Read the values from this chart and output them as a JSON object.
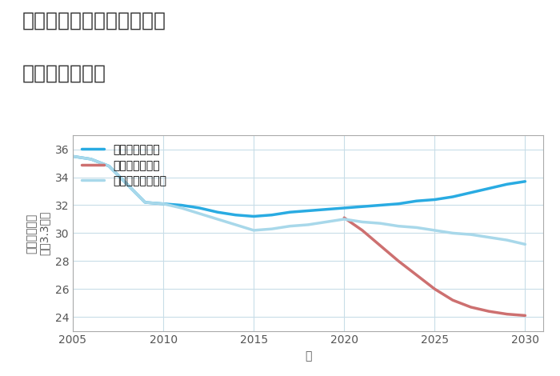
{
  "title_line1": "愛知県豊橋市東田中郷町の",
  "title_line2": "土地の価格推移",
  "xlabel": "年",
  "ylabel_top": "単価（万円）",
  "ylabel_bottom": "坪（3.3㎡）",
  "ylim": [
    23,
    37
  ],
  "xlim": [
    2005,
    2031
  ],
  "yticks": [
    24,
    26,
    28,
    30,
    32,
    34,
    36
  ],
  "xticks": [
    2005,
    2010,
    2015,
    2020,
    2025,
    2030
  ],
  "good_scenario": {
    "x": [
      2005,
      2006,
      2007,
      2008,
      2009,
      2010,
      2011,
      2012,
      2013,
      2014,
      2015,
      2016,
      2017,
      2018,
      2019,
      2020,
      2021,
      2022,
      2023,
      2024,
      2025,
      2026,
      2027,
      2028,
      2029,
      2030
    ],
    "y": [
      35.5,
      35.3,
      34.8,
      33.5,
      32.2,
      32.1,
      32.0,
      31.8,
      31.5,
      31.3,
      31.2,
      31.3,
      31.5,
      31.6,
      31.7,
      31.8,
      31.9,
      32.0,
      32.1,
      32.3,
      32.4,
      32.6,
      32.9,
      33.2,
      33.5,
      33.7
    ],
    "color": "#29ABE2",
    "label": "グッドシナリオ",
    "linewidth": 2.5
  },
  "bad_scenario": {
    "x": [
      2020,
      2021,
      2022,
      2023,
      2024,
      2025,
      2026,
      2027,
      2028,
      2029,
      2030
    ],
    "y": [
      31.1,
      30.2,
      29.1,
      28.0,
      27.0,
      26.0,
      25.2,
      24.7,
      24.4,
      24.2,
      24.1
    ],
    "color": "#CD7070",
    "label": "バッドシナリオ",
    "linewidth": 2.5
  },
  "normal_scenario": {
    "x": [
      2005,
      2006,
      2007,
      2008,
      2009,
      2010,
      2011,
      2012,
      2013,
      2014,
      2015,
      2016,
      2017,
      2018,
      2019,
      2020,
      2021,
      2022,
      2023,
      2024,
      2025,
      2026,
      2027,
      2028,
      2029,
      2030
    ],
    "y": [
      35.5,
      35.3,
      34.8,
      33.5,
      32.2,
      32.1,
      31.8,
      31.4,
      31.0,
      30.6,
      30.2,
      30.3,
      30.5,
      30.6,
      30.8,
      31.0,
      30.8,
      30.7,
      30.5,
      30.4,
      30.2,
      30.0,
      29.9,
      29.7,
      29.5,
      29.2
    ],
    "color": "#A8D8EA",
    "label": "ノーマルシナリオ",
    "linewidth": 2.5
  },
  "background_color": "#FFFFFF",
  "grid_color": "#C8DDE8",
  "title_fontsize": 18,
  "label_fontsize": 10,
  "tick_fontsize": 10,
  "legend_fontsize": 10
}
